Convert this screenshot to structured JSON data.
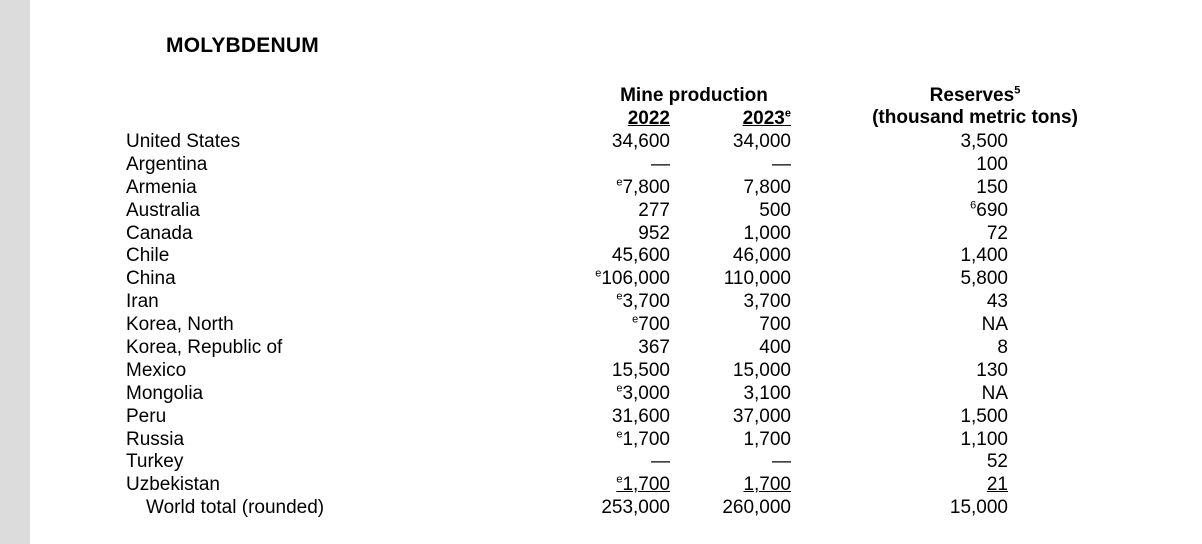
{
  "title": "MOLYBDENUM",
  "headers": {
    "mine_production": "Mine production",
    "year_2022": "2022",
    "year_2023": "2023",
    "year_2023_sup": "e",
    "reserves": "Reserves",
    "reserves_sup": "5",
    "reserves_units": "(thousand metric tons)"
  },
  "rows": [
    {
      "country": "United States",
      "p2022_sup": "",
      "p2022": "34,600",
      "p2023": "34,000",
      "res_sup": "",
      "reserves": "3,500"
    },
    {
      "country": "Argentina",
      "p2022_sup": "",
      "p2022": "—",
      "p2023": "—",
      "res_sup": "",
      "reserves": "100"
    },
    {
      "country": "Armenia",
      "p2022_sup": "e",
      "p2022": "7,800",
      "p2023": "7,800",
      "res_sup": "",
      "reserves": "150"
    },
    {
      "country": "Australia",
      "p2022_sup": "",
      "p2022": "277",
      "p2023": "500",
      "res_sup": "6",
      "reserves": "690"
    },
    {
      "country": "Canada",
      "p2022_sup": "",
      "p2022": "952",
      "p2023": "1,000",
      "res_sup": "",
      "reserves": "72"
    },
    {
      "country": "Chile",
      "p2022_sup": "",
      "p2022": "45,600",
      "p2023": "46,000",
      "res_sup": "",
      "reserves": "1,400"
    },
    {
      "country": "China",
      "p2022_sup": "e",
      "p2022": "106,000",
      "p2023": "110,000",
      "res_sup": "",
      "reserves": "5,800"
    },
    {
      "country": "Iran",
      "p2022_sup": "e",
      "p2022": "3,700",
      "p2023": "3,700",
      "res_sup": "",
      "reserves": "43"
    },
    {
      "country": "Korea, North",
      "p2022_sup": "e",
      "p2022": "700",
      "p2023": "700",
      "res_sup": "",
      "reserves": "NA"
    },
    {
      "country": "Korea, Republic of",
      "p2022_sup": "",
      "p2022": "367",
      "p2023": "400",
      "res_sup": "",
      "reserves": "8"
    },
    {
      "country": "Mexico",
      "p2022_sup": "",
      "p2022": "15,500",
      "p2023": "15,000",
      "res_sup": "",
      "reserves": "130"
    },
    {
      "country": "Mongolia",
      "p2022_sup": "e",
      "p2022": "3,000",
      "p2023": "3,100",
      "res_sup": "",
      "reserves": "NA"
    },
    {
      "country": "Peru",
      "p2022_sup": "",
      "p2022": "31,600",
      "p2023": "37,000",
      "res_sup": "",
      "reserves": "1,500"
    },
    {
      "country": "Russia",
      "p2022_sup": "e",
      "p2022": "1,700",
      "p2023": "1,700",
      "res_sup": "",
      "reserves": "1,100"
    },
    {
      "country": "Turkey",
      "p2022_sup": "",
      "p2022": "—",
      "p2023": "—",
      "res_sup": "",
      "reserves": "52"
    },
    {
      "country": "Uzbekistan",
      "p2022_sup": "e",
      "p2022": "1,700",
      "p2023": "1,700",
      "res_sup": "",
      "reserves": "21"
    },
    {
      "country": "World total (rounded)",
      "p2022_sup": "",
      "p2022": "253,000",
      "p2023": "260,000",
      "res_sup": "",
      "reserves": "15,000"
    }
  ]
}
